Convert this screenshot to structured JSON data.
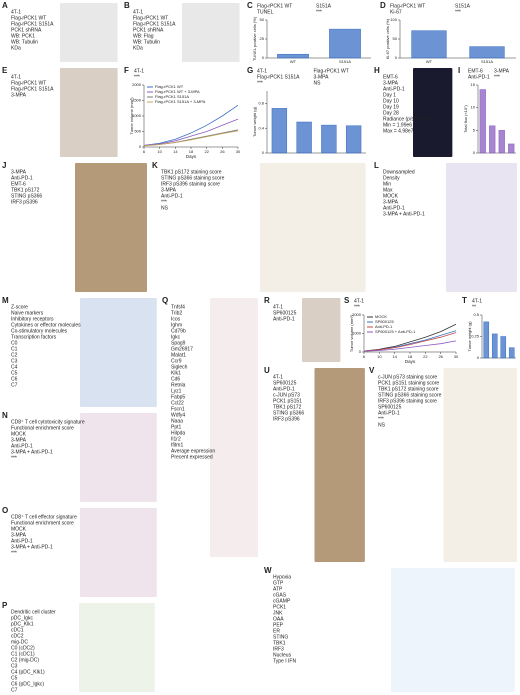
{
  "panels": [
    {
      "letter": "A",
      "texts": [
        "4T-1",
        "Flag-rPCK1 WT",
        "Flag-rPCK1 S151A",
        "PCK1 shRNA",
        "WB: PCK1",
        "WB: Tubulin",
        "KDa"
      ]
    },
    {
      "letter": "B",
      "texts": [
        "4T-1",
        "Flag-rPCK1 WT",
        "Flag-rPCK1 S151A",
        "PCK1 shRNA",
        "WB: Flag",
        "WB: Tubulin",
        "KDa"
      ]
    },
    {
      "letter": "C",
      "texts": [
        "Flag-rPCK1 WT",
        "S151A",
        "TUNEL",
        "***"
      ],
      "chart": {
        "type": "bar",
        "ylabel": "TUNEL positive cells (%)",
        "categories": [
          "WT",
          "S151A"
        ],
        "values": [
          5,
          38
        ],
        "color": "#3b6fc4",
        "ylim": [
          0,
          50
        ],
        "yticks": [
          0,
          25,
          50
        ]
      }
    },
    {
      "letter": "D",
      "texts": [
        "Flag-rPCK1 WT",
        "S151A",
        "Ki-67",
        "***"
      ],
      "chart": {
        "type": "bar",
        "ylabel": "Ki-67 positive cells (%)",
        "categories": [
          "WT",
          "S151A"
        ],
        "values": [
          72,
          30
        ],
        "color": "#3b6fc4",
        "ylim": [
          0,
          100
        ],
        "yticks": [
          0,
          50,
          100
        ]
      }
    },
    {
      "letter": "E",
      "texts": [
        "4T-1",
        "Flag-rPCK1 WT",
        "Flag-rPCK1 S151A",
        "3-MPA"
      ]
    },
    {
      "letter": "F",
      "texts": [
        "4T-1",
        "***"
      ],
      "chart": {
        "type": "line",
        "ylabel": "Tumor volume (mm³)",
        "xlabel": "Days",
        "x": [
          6,
          10,
          14,
          18,
          22,
          26,
          30
        ],
        "xlim": [
          6,
          30
        ],
        "xticks": [
          6,
          10,
          14,
          18,
          22,
          26,
          30
        ],
        "ylim": [
          0,
          2000
        ],
        "yticks": [
          0,
          500,
          1000,
          1500,
          2000
        ],
        "series": [
          {
            "name": "Flag-rPCK1 WT",
            "color": "#3b6fc4",
            "values": [
              50,
              120,
              250,
              450,
              700,
              1000,
              1350
            ]
          },
          {
            "name": "Flag-rPCK1 WT + 3-MPA",
            "color": "#8a5cc2",
            "values": [
              50,
              100,
              200,
              350,
              500,
              700,
              900
            ]
          },
          {
            "name": "Flag-rPCK1 S151A",
            "color": "#777777",
            "values": [
              40,
              80,
              150,
              250,
              350,
              450,
              550
            ]
          },
          {
            "name": "Flag-rPCK1 S151A + 3-MPA",
            "color": "#c4a35a",
            "values": [
              40,
              80,
              140,
              230,
              330,
              430,
              520
            ]
          }
        ]
      }
    },
    {
      "letter": "G",
      "texts": [
        "4T-1",
        "Flag-rPCK1 WT",
        "Flag-rPCK1 S151A",
        "3-MPA",
        "***",
        "NS"
      ],
      "chart": {
        "type": "bar",
        "ylabel": "Tumor weight (g)",
        "values": [
          0.72,
          0.5,
          0.45,
          0.44
        ],
        "color": "#3b6fc4",
        "ylim": [
          0,
          1
        ],
        "yticks": [
          0,
          0.4,
          0.8
        ]
      }
    },
    {
      "letter": "H",
      "texts": [
        "EMT-6",
        "3-MPA",
        "Anti-PD-1",
        "Day 1",
        "Day 10",
        "Day 19",
        "Day 28",
        "Radiance (p/sec/cm²/sr)",
        "Min = 1.99e6",
        "Max = 4.98e7"
      ]
    },
    {
      "letter": "I",
      "texts": [
        "EMT-6",
        "3-MPA",
        "Anti-PD-1",
        "***"
      ],
      "chart": {
        "type": "bar",
        "ylabel": "Total flux (×10⁷)",
        "values": [
          14,
          6,
          5,
          2
        ],
        "color": "#8a5cc2",
        "ylim": [
          0,
          15
        ],
        "yticks": [
          0,
          5,
          10,
          15
        ]
      }
    },
    {
      "letter": "J",
      "texts": [
        "3-MPA",
        "Anti-PD-1",
        "EMT-6",
        "TBK1 pS172",
        "STING pS366",
        "IRF3 pS396"
      ]
    },
    {
      "letter": "K",
      "texts": [
        "TBK1 pS172 staining score",
        "STING pS366 staining score",
        "IRF3 pS396 staining score",
        "3-MPA",
        "Anti-PD-1",
        "***",
        "NS"
      ]
    },
    {
      "letter": "L",
      "texts": [
        "Downsampled",
        "Density",
        "Min",
        "Max",
        "MOCK",
        "3-MPA",
        "Anti-PD-1",
        "3-MPA + Anti-PD-1"
      ]
    },
    {
      "letter": "M",
      "texts": [
        "Z-score",
        "Naive markers",
        "Inhibitory receptors",
        "Cytokines or effector molecules",
        "Co-stimulatory molecules",
        "Transcription factors",
        "C0",
        "C1",
        "C2",
        "C3",
        "C4",
        "C5",
        "C6",
        "C7"
      ]
    },
    {
      "letter": "N",
      "texts": [
        "CD8⁺ T cell cytotoxicity signature",
        "Functional enrichment score",
        "MOCK",
        "3-MPA",
        "Anti-PD-1",
        "3-MPA + Anti-PD-1",
        "***"
      ]
    },
    {
      "letter": "O",
      "texts": [
        "CD8⁺ T cell effector signature",
        "Functional enrichment score",
        "MOCK",
        "3-MPA",
        "Anti-PD-1",
        "3-MPA + Anti-PD-1",
        "***"
      ]
    },
    {
      "letter": "P",
      "texts": [
        "Dendritic cell cluster",
        "pDC_Igkc",
        "pDC_Klk1",
        "cDC1",
        "cDC2",
        "mig-DC",
        "C0 (cDC2)",
        "C1 (cDC1)",
        "C2 (mig-DC)",
        "C3",
        "C4 (pDC_Klk1)",
        "C5",
        "C6 (pDC_Igkc)",
        "C7"
      ]
    },
    {
      "letter": "Q",
      "texts": [
        "Tnfsf4",
        "Trib2",
        "Icos",
        "Ighm",
        "Cd79b",
        "Igkc",
        "Spag9",
        "Gm26917",
        "Malat1",
        "Ccr9",
        "Siglech",
        "Klk1",
        "Cd6",
        "Retnla",
        "Lyz1",
        "Fabp5",
        "Ccl22",
        "Fscn1",
        "Wdfy4",
        "Naaa",
        "Ppt1",
        "Hilpda",
        "Il1r2",
        "Ifitm1",
        "Average expression",
        "Precent expressed"
      ]
    },
    {
      "letter": "R",
      "texts": [
        "4T-1",
        "SP600125",
        "Anti-PD-1"
      ]
    },
    {
      "letter": "S",
      "texts": [
        "4T-1",
        "***"
      ],
      "chart": {
        "type": "line",
        "ylabel": "Tumor volume (mm³)",
        "xlabel": "Days",
        "x": [
          6,
          10,
          14,
          18,
          22,
          26,
          30
        ],
        "xlim": [
          6,
          30
        ],
        "xticks": [
          6,
          10,
          14,
          18,
          22,
          26,
          30
        ],
        "ylim": [
          0,
          2000
        ],
        "yticks": [
          0,
          1000,
          2000
        ],
        "series": [
          {
            "name": "MOCK",
            "color": "#333333",
            "values": [
              50,
              150,
              300,
              550,
              800,
              1100,
              1500
            ]
          },
          {
            "name": "SP600125",
            "color": "#3b6fc4",
            "values": [
              50,
              120,
              250,
              450,
              650,
              900,
              1150
            ]
          },
          {
            "name": "Anti-PD-1",
            "color": "#c44a4a",
            "values": [
              50,
              120,
              230,
              400,
              600,
              800,
              1050
            ]
          },
          {
            "name": "SP600125 + Anti-PD-1",
            "color": "#8a5cc2",
            "values": [
              40,
              80,
              150,
              250,
              350,
              450,
              600
            ]
          }
        ]
      }
    },
    {
      "letter": "T",
      "texts": [
        "4T-1",
        "**"
      ],
      "chart": {
        "type": "bar",
        "ylabel": "Tumor weight (g)",
        "values": [
          0.42,
          0.28,
          0.25,
          0.12
        ],
        "color": "#3b6fc4",
        "ylim": [
          0,
          0.5
        ],
        "yticks": [
          0,
          0.25,
          0.5
        ]
      }
    },
    {
      "letter": "U",
      "texts": [
        "4T-1",
        "SP600125",
        "Anti-PD-1",
        "c-JUN pS73",
        "PCK1 pS151",
        "TBK1 pS172",
        "STING pS366",
        "IRF3 pS396"
      ]
    },
    {
      "letter": "V",
      "texts": [
        "c-JUN pS73 staining score",
        "PCK1 pS151 staining score",
        "TBK1 pS172 staining score",
        "STING pS366 staining score",
        "IRF3 pS396 staining score",
        "SP600125",
        "Anti-PD-1",
        "***",
        "NS"
      ]
    },
    {
      "letter": "W",
      "texts": [
        "Hypoxia",
        "GTP",
        "ATP",
        "cGAS",
        "cGAMP",
        "PCK1",
        "JNK",
        "OAA",
        "PEP",
        "ER",
        "STING",
        "TBK1",
        "IRF3",
        "Nucleus",
        "Type I IFN"
      ]
    }
  ]
}
